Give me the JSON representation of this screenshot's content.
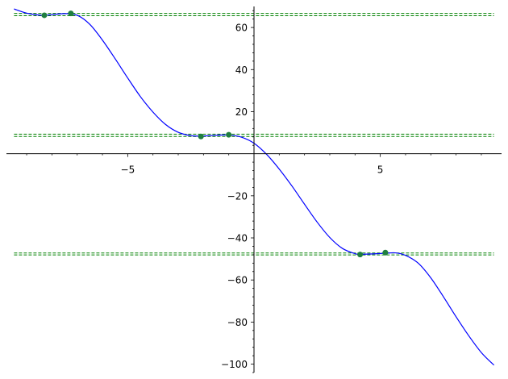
{
  "chart_data": {
    "type": "line",
    "title": "",
    "xlabel": "",
    "ylabel": "",
    "xlim": [
      -9.8,
      9.8
    ],
    "ylim": [
      -104,
      70
    ],
    "x_ticks": [
      {
        "value": -5,
        "label": "−5"
      },
      {
        "value": 5,
        "label": "5"
      }
    ],
    "y_ticks": [
      {
        "value": 60,
        "label": "60"
      },
      {
        "value": 40,
        "label": "40"
      },
      {
        "value": 20,
        "label": "20"
      },
      {
        "value": -20,
        "label": "−20"
      },
      {
        "value": -40,
        "label": "−40"
      },
      {
        "value": -60,
        "label": "−60"
      },
      {
        "value": -80,
        "label": "−80"
      },
      {
        "value": -100,
        "label": "−100"
      }
    ],
    "curve": {
      "color": "#0000ff",
      "x": [
        -9.5,
        -9.0,
        -8.5,
        -8.3,
        -8.0,
        -7.5,
        -7.0,
        -6.5,
        -6.0,
        -5.5,
        -5.0,
        -4.5,
        -4.0,
        -3.5,
        -3.0,
        -2.5,
        -2.1,
        -1.5,
        -1.0,
        -0.5,
        0.0,
        0.5,
        1.0,
        1.5,
        2.0,
        2.5,
        3.0,
        3.5,
        4.0,
        4.2,
        4.7,
        5.2,
        5.6,
        6.0,
        6.5,
        7.0,
        7.5,
        8.0,
        8.5,
        9.0,
        9.5
      ],
      "y": [
        68.8,
        66.8,
        65.9,
        65.8,
        66.1,
        66.6,
        65.8,
        61.5,
        54.0,
        45.2,
        36.0,
        27.2,
        19.8,
        13.9,
        10.2,
        8.6,
        8.4,
        8.8,
        8.9,
        7.9,
        5.0,
        -0.3,
        -7.3,
        -15.3,
        -24.0,
        -32.5,
        -39.8,
        -45.0,
        -47.5,
        -47.8,
        -47.6,
        -47.3,
        -47.1,
        -48.3,
        -52.0,
        -59.0,
        -68.0,
        -77.5,
        -86.5,
        -94.5,
        -100.5
      ]
    },
    "horizontal_lines": {
      "color": "#008000",
      "style": "dashed",
      "y": [
        66.7,
        65.6,
        9.3,
        8.2,
        -47.2,
        -48.1
      ]
    },
    "points": {
      "color": "#1f7f3f",
      "x": [
        -8.3,
        -7.25,
        -2.1,
        -1.0,
        4.2,
        5.2
      ],
      "y": [
        65.8,
        66.7,
        8.2,
        9.0,
        -47.9,
        -47.0
      ]
    }
  }
}
